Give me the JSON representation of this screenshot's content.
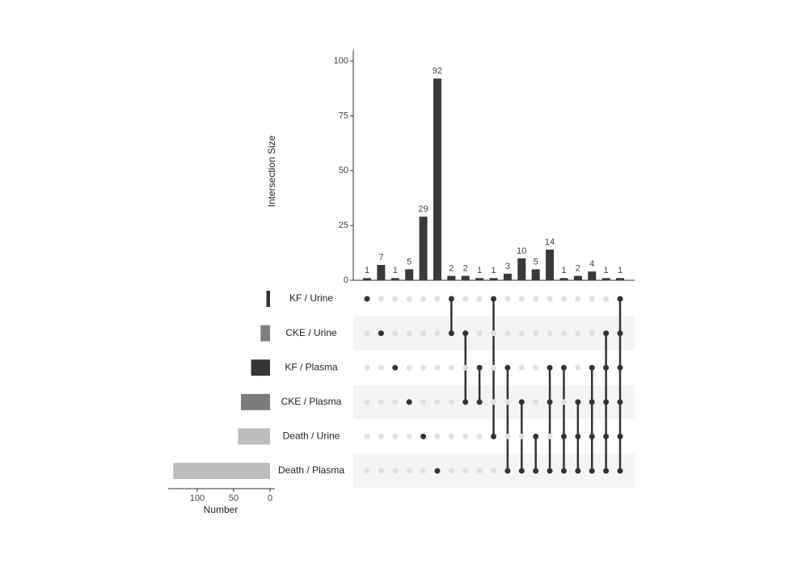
{
  "chart_data": {
    "type": "upset",
    "y_label": "Intersection Size",
    "x_label": "Number",
    "ylim": [
      0,
      105
    ],
    "yticks": [
      0,
      25,
      50,
      75,
      100
    ],
    "xlim": [
      0,
      140
    ],
    "xticks": [
      0,
      50,
      100
    ],
    "bar_color": "#3a3a3a",
    "sets": [
      "KF / Urine",
      "CKE / Urine",
      "KF / Plasma",
      "CKE / Plasma",
      "Death / Urine",
      "Death / Plasma"
    ],
    "set_sizes": [
      5,
      13,
      26,
      40,
      44,
      133
    ],
    "set_colors": [
      "#333333",
      "#7f7f7f",
      "#363636",
      "#7c7c7c",
      "#bdbdbd",
      "#bdbdbd"
    ],
    "values": [
      1,
      7,
      1,
      5,
      29,
      92,
      2,
      2,
      1,
      1,
      3,
      10,
      5,
      14,
      1,
      2,
      4,
      1,
      1
    ],
    "membership": [
      [
        1,
        0,
        0,
        0,
        0,
        0
      ],
      [
        0,
        1,
        0,
        0,
        0,
        0
      ],
      [
        0,
        0,
        1,
        0,
        0,
        0
      ],
      [
        0,
        0,
        0,
        1,
        0,
        0
      ],
      [
        0,
        0,
        0,
        0,
        1,
        0
      ],
      [
        0,
        0,
        0,
        0,
        0,
        1
      ],
      [
        1,
        1,
        0,
        0,
        0,
        0
      ],
      [
        0,
        1,
        0,
        1,
        0,
        0
      ],
      [
        0,
        0,
        1,
        1,
        0,
        0
      ],
      [
        1,
        0,
        0,
        0,
        1,
        0
      ],
      [
        0,
        0,
        1,
        0,
        0,
        1
      ],
      [
        0,
        0,
        0,
        1,
        0,
        1
      ],
      [
        0,
        0,
        0,
        0,
        1,
        1
      ],
      [
        0,
        0,
        1,
        1,
        0,
        1
      ],
      [
        0,
        0,
        1,
        0,
        1,
        1
      ],
      [
        0,
        0,
        0,
        1,
        1,
        1
      ],
      [
        0,
        0,
        1,
        1,
        1,
        1
      ],
      [
        0,
        1,
        1,
        1,
        1,
        1
      ],
      [
        1,
        1,
        1,
        1,
        1,
        1
      ]
    ]
  }
}
